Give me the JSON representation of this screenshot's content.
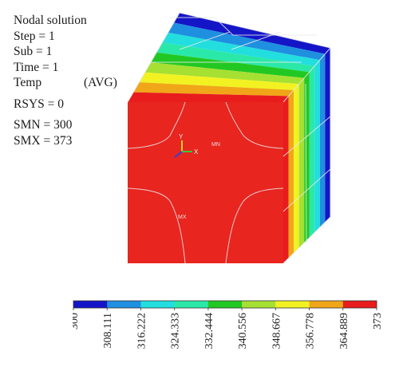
{
  "header": {
    "title": "Nodal solution",
    "step": "Step = 1",
    "sub": "Sub = 1",
    "time": "Time = 1",
    "temp": "Temp",
    "avg": "(AVG)",
    "rsys": "RSYS = 0",
    "smn": "SMN = 300",
    "smx": "SMX = 373"
  },
  "markers": {
    "axis_y": "Y",
    "axis_x": "X",
    "mn": "MN",
    "mx": "MX"
  },
  "legend": {
    "colors": [
      "#1515c8",
      "#1f8fe0",
      "#22dede",
      "#2ae8a8",
      "#22c822",
      "#a6e032",
      "#f2f222",
      "#f0a618",
      "#e81c1c"
    ],
    "labels": [
      "300",
      "308.111",
      "316.222",
      "324.333",
      "332.444",
      "340.556",
      "348.667",
      "356.778",
      "364.889",
      "373"
    ]
  },
  "contour": {
    "front_face_color": "#e8251f",
    "top_face_bands": [
      "#1515c8",
      "#1f8fe0",
      "#22dede",
      "#2ae8a8",
      "#22c822",
      "#a6e032",
      "#f2f222",
      "#f0a618",
      "#e81c1c"
    ],
    "side_face_bands": [
      "#e81c1c",
      "#f0a618",
      "#f2f222",
      "#a6e032",
      "#22c822",
      "#2ae8a8",
      "#22dede",
      "#1f8fe0",
      "#1515c8"
    ]
  }
}
